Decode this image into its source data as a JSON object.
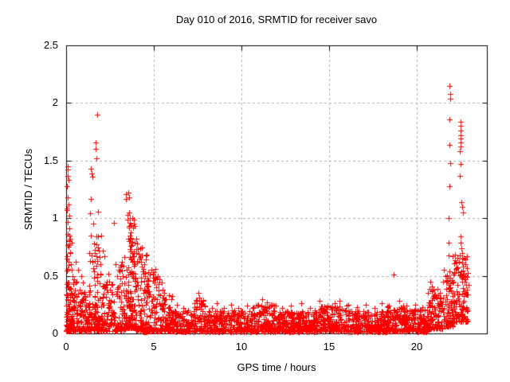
{
  "window": {
    "background": "#ffffff",
    "text_color": "#000000"
  },
  "chart_data": {
    "type": "scatter",
    "title": "Day 010 of 2016, SRMTID for receiver savo",
    "xlabel": "GPS time / hours",
    "ylabel": "SRMTID / TECUs",
    "xlim": [
      0,
      24
    ],
    "ylim": [
      0,
      2.5
    ],
    "xtick_values": [
      0,
      5,
      10,
      15,
      20
    ],
    "xtick_labels": [
      "0",
      "5",
      "10",
      "15",
      "20"
    ],
    "ytick_values": [
      0,
      0.5,
      1,
      1.5,
      2,
      2.5
    ],
    "ytick_labels": [
      "0",
      "0.5",
      "1",
      "1.5",
      "2",
      "2.5"
    ],
    "grid": {
      "show": true,
      "style": "dashed",
      "color": "#b0b0b0"
    },
    "border_color": "#000000",
    "legend": "none",
    "marker": {
      "shape": "plus",
      "color": "#ff0000",
      "size": 7
    },
    "points": [
      [
        0.04,
        0.65
      ],
      [
        0.05,
        1.07
      ],
      [
        0.06,
        1.28
      ],
      [
        0.07,
        1.45
      ],
      [
        0.07,
        0.86
      ],
      [
        0.08,
        1.37
      ],
      [
        0.09,
        0.97
      ],
      [
        0.1,
        1.42
      ],
      [
        0.1,
        1.18
      ],
      [
        0.12,
        1.33
      ],
      [
        0.13,
        0.75
      ],
      [
        0.14,
        1.12
      ],
      [
        0.16,
        1.02
      ],
      [
        0.18,
        0.91
      ],
      [
        0.2,
        0.8
      ],
      [
        0.22,
        0.7
      ],
      [
        0.26,
        0.6
      ],
      [
        0.3,
        0.55
      ],
      [
        0.35,
        0.5
      ],
      [
        0.45,
        0.47
      ],
      [
        0.55,
        0.62
      ],
      [
        0.6,
        0.45
      ],
      [
        0.7,
        0.55
      ],
      [
        0.85,
        0.5
      ],
      [
        0.95,
        0.44
      ],
      [
        1.35,
        0.63
      ],
      [
        1.38,
        1.04
      ],
      [
        1.4,
        1.43
      ],
      [
        1.42,
        1.17
      ],
      [
        1.45,
        1.39
      ],
      [
        1.45,
        0.68
      ],
      [
        1.5,
        1.36
      ],
      [
        1.52,
        0.62
      ],
      [
        1.55,
        0.95
      ],
      [
        1.6,
        0.78
      ],
      [
        1.62,
        0.7
      ],
      [
        1.68,
        1.66
      ],
      [
        1.7,
        1.6
      ],
      [
        1.73,
        1.52
      ],
      [
        1.77,
        1.9
      ],
      [
        1.8,
        1.06
      ],
      [
        1.82,
        0.84
      ],
      [
        1.88,
        0.72
      ],
      [
        1.92,
        0.66
      ],
      [
        1.97,
        0.6
      ],
      [
        2.1,
        0.72
      ],
      [
        2.2,
        0.67
      ],
      [
        2.3,
        0.45
      ],
      [
        2.4,
        0.52
      ],
      [
        2.5,
        0.38
      ],
      [
        2.6,
        0.42
      ],
      [
        2.73,
        0.96
      ],
      [
        2.8,
        0.6
      ],
      [
        2.9,
        0.5
      ],
      [
        3.0,
        0.55
      ],
      [
        3.1,
        0.58
      ],
      [
        3.2,
        0.62
      ],
      [
        3.3,
        0.66
      ],
      [
        3.4,
        1.21
      ],
      [
        3.42,
        1.17
      ],
      [
        3.48,
        0.99
      ],
      [
        3.5,
        1.03
      ],
      [
        3.55,
        1.22
      ],
      [
        3.57,
        1.18
      ],
      [
        3.58,
        0.8
      ],
      [
        3.6,
        1.05
      ],
      [
        3.6,
        0.92
      ],
      [
        3.62,
        1.0
      ],
      [
        3.63,
        0.85
      ],
      [
        3.65,
        0.96
      ],
      [
        3.65,
        0.73
      ],
      [
        3.68,
        0.88
      ],
      [
        3.7,
        0.82
      ],
      [
        3.72,
        0.77
      ],
      [
        3.75,
        0.7
      ],
      [
        3.8,
        0.67
      ],
      [
        3.85,
        0.63
      ],
      [
        3.9,
        0.6
      ],
      [
        4.0,
        0.82
      ],
      [
        4.05,
        0.78
      ],
      [
        4.1,
        0.73
      ],
      [
        4.15,
        0.69
      ],
      [
        4.2,
        0.65
      ],
      [
        4.25,
        0.62
      ],
      [
        4.3,
        0.58
      ],
      [
        4.38,
        0.54
      ],
      [
        4.45,
        0.6
      ],
      [
        4.5,
        0.5
      ],
      [
        4.85,
        0.55
      ],
      [
        4.95,
        0.52
      ],
      [
        5.0,
        0.48
      ],
      [
        5.05,
        0.44
      ],
      [
        5.1,
        0.56
      ],
      [
        5.15,
        0.4
      ],
      [
        5.25,
        0.37
      ],
      [
        5.35,
        0.33
      ],
      [
        5.45,
        0.44
      ],
      [
        5.5,
        0.38
      ],
      [
        5.55,
        0.31
      ],
      [
        5.6,
        0.35
      ],
      [
        5.7,
        0.3
      ],
      [
        5.85,
        0.33
      ],
      [
        6.3,
        0.25
      ],
      [
        6.7,
        0.22
      ],
      [
        7.45,
        0.28
      ],
      [
        7.55,
        0.35
      ],
      [
        7.6,
        0.31
      ],
      [
        7.7,
        0.26
      ],
      [
        8.3,
        0.22
      ],
      [
        8.6,
        0.26
      ],
      [
        9.0,
        0.22
      ],
      [
        9.4,
        0.25
      ],
      [
        9.8,
        0.22
      ],
      [
        10.3,
        0.24
      ],
      [
        10.9,
        0.24
      ],
      [
        11.2,
        0.3
      ],
      [
        11.45,
        0.27
      ],
      [
        11.7,
        0.25
      ],
      [
        12.3,
        0.22
      ],
      [
        12.8,
        0.24
      ],
      [
        13.4,
        0.26
      ],
      [
        13.9,
        0.22
      ],
      [
        14.45,
        0.28
      ],
      [
        14.9,
        0.24
      ],
      [
        15.3,
        0.26
      ],
      [
        15.6,
        0.28
      ],
      [
        16.1,
        0.25
      ],
      [
        16.6,
        0.23
      ],
      [
        17.1,
        0.25
      ],
      [
        17.6,
        0.22
      ],
      [
        18.0,
        0.26
      ],
      [
        18.4,
        0.24
      ],
      [
        18.7,
        0.51
      ],
      [
        19.0,
        0.28
      ],
      [
        19.4,
        0.24
      ],
      [
        19.9,
        0.25
      ],
      [
        20.3,
        0.23
      ],
      [
        20.75,
        0.45
      ],
      [
        20.85,
        0.41
      ],
      [
        20.95,
        0.38
      ],
      [
        21.05,
        0.34
      ],
      [
        21.15,
        0.31
      ],
      [
        21.3,
        0.35
      ],
      [
        21.55,
        0.55
      ],
      [
        21.65,
        0.5
      ],
      [
        21.72,
        0.46
      ],
      [
        21.8,
        0.42
      ],
      [
        21.82,
        0.68
      ],
      [
        21.83,
        0.79
      ],
      [
        21.84,
        1.0
      ],
      [
        21.85,
        1.28
      ],
      [
        21.86,
        1.64
      ],
      [
        21.87,
        1.86
      ],
      [
        21.88,
        2.15
      ],
      [
        21.89,
        1.48
      ],
      [
        21.9,
        2.08
      ],
      [
        21.9,
        2.04
      ],
      [
        22.3,
        0.57
      ],
      [
        22.35,
        0.53
      ],
      [
        22.4,
        0.62
      ],
      [
        22.44,
        1.37
      ],
      [
        22.47,
        1.58
      ],
      [
        22.48,
        1.84
      ],
      [
        22.49,
        1.72
      ],
      [
        22.5,
        1.8
      ],
      [
        22.5,
        1.69
      ],
      [
        22.5,
        1.62
      ],
      [
        22.5,
        1.47
      ],
      [
        22.5,
        0.84
      ],
      [
        22.51,
        1.76
      ],
      [
        22.52,
        1.66
      ],
      [
        22.52,
        0.79
      ],
      [
        22.55,
        1.14
      ],
      [
        22.55,
        0.74
      ],
      [
        22.57,
        0.7
      ],
      [
        22.58,
        1.1
      ],
      [
        22.6,
        0.65
      ],
      [
        22.62,
        1.05
      ],
      [
        22.65,
        0.58
      ],
      [
        22.7,
        0.52
      ],
      [
        22.75,
        0.47
      ],
      [
        22.8,
        0.42
      ],
      [
        22.85,
        0.38
      ],
      [
        22.9,
        0.34
      ]
    ],
    "square_points": [
      [
        4.5,
        0.01
      ],
      [
        4.55,
        0.015
      ]
    ],
    "baseline_noise": {
      "description": "dense band of + markers; segments are [hour_start, hour_end, n_points, y_min, y_max, skew_power]",
      "seed": 42,
      "segments": [
        [
          0.0,
          0.3,
          60,
          0.03,
          1.1,
          3.0
        ],
        [
          0.0,
          0.7,
          90,
          0.02,
          0.45,
          2.2
        ],
        [
          0.7,
          1.3,
          70,
          0.02,
          0.38,
          2.0
        ],
        [
          1.3,
          2.0,
          80,
          0.03,
          0.9,
          2.8
        ],
        [
          1.3,
          2.1,
          50,
          0.02,
          0.3,
          1.8
        ],
        [
          2.1,
          3.0,
          90,
          0.02,
          0.45,
          2.2
        ],
        [
          3.0,
          3.45,
          60,
          0.03,
          0.6,
          2.2
        ],
        [
          3.45,
          3.95,
          110,
          0.05,
          1.0,
          2.4
        ],
        [
          3.95,
          4.6,
          90,
          0.03,
          0.75,
          2.4
        ],
        [
          4.6,
          5.35,
          90,
          0.02,
          0.55,
          2.4
        ],
        [
          5.35,
          6.1,
          85,
          0.02,
          0.33,
          2.0
        ],
        [
          6.1,
          7.3,
          120,
          0.015,
          0.2,
          1.7
        ],
        [
          7.3,
          7.95,
          70,
          0.02,
          0.3,
          1.9
        ],
        [
          7.95,
          10.6,
          280,
          0.015,
          0.2,
          1.7
        ],
        [
          10.6,
          12.1,
          160,
          0.015,
          0.26,
          1.8
        ],
        [
          12.1,
          14.4,
          250,
          0.015,
          0.2,
          1.7
        ],
        [
          14.4,
          16.0,
          170,
          0.02,
          0.24,
          1.8
        ],
        [
          16.0,
          18.3,
          250,
          0.015,
          0.2,
          1.7
        ],
        [
          18.3,
          19.3,
          110,
          0.02,
          0.24,
          1.8
        ],
        [
          19.3,
          20.6,
          140,
          0.015,
          0.21,
          1.7
        ],
        [
          20.6,
          21.45,
          100,
          0.04,
          0.4,
          2.0
        ],
        [
          21.45,
          22.05,
          75,
          0.06,
          0.55,
          2.2
        ],
        [
          22.05,
          22.95,
          120,
          0.1,
          0.7,
          2.0
        ]
      ]
    }
  }
}
